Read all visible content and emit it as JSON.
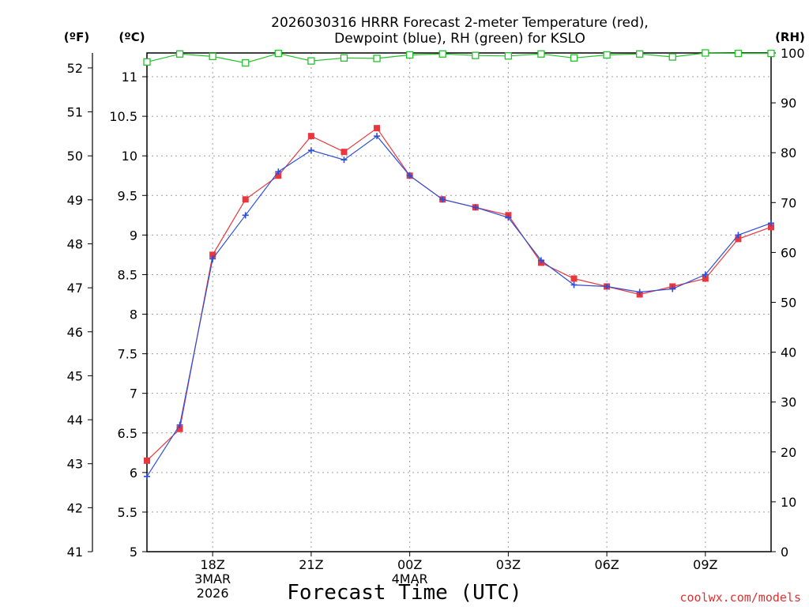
{
  "chart_data": {
    "type": "line",
    "title_line1": "2026030316 HRRR Forecast 2-meter Temperature (red),",
    "title_line2": "Dewpoint (blue), RH (green) for KSLO",
    "xlabel": "Forecast Time (UTC)",
    "units": {
      "left_outer": "(ºF)",
      "left_inner": "(ºC)",
      "right": "(RH)"
    },
    "credit": "coolwx.com/models",
    "x_hours": [
      16,
      17,
      18,
      19,
      20,
      21,
      22,
      23,
      24,
      25,
      26,
      27,
      28,
      29,
      30,
      31,
      32,
      33,
      34,
      35
    ],
    "x_ticks": [
      {
        "hour": 18,
        "lines": [
          "18Z",
          "3MAR",
          "2026"
        ]
      },
      {
        "hour": 21,
        "lines": [
          "21Z"
        ]
      },
      {
        "hour": 24,
        "lines": [
          "00Z",
          "4MAR"
        ]
      },
      {
        "hour": 27,
        "lines": [
          "03Z"
        ]
      },
      {
        "hour": 30,
        "lines": [
          "06Z"
        ]
      },
      {
        "hour": 33,
        "lines": [
          "09Z"
        ]
      }
    ],
    "xlim": [
      16,
      35
    ],
    "ylim_c": [
      5,
      11.3
    ],
    "ylim_rh": [
      0,
      100
    ],
    "yticks_c": [
      "5",
      "5.5",
      "6",
      "6.5",
      "7",
      "7.5",
      "8",
      "8.5",
      "9",
      "9.5",
      "10",
      "10.5",
      "11"
    ],
    "yticks_f": [
      "41",
      "42",
      "43",
      "44",
      "45",
      "46",
      "47",
      "48",
      "49",
      "50",
      "51",
      "52"
    ],
    "yticks_rh": [
      "0",
      "10",
      "20",
      "30",
      "40",
      "50",
      "60",
      "70",
      "80",
      "90",
      "100"
    ],
    "series": [
      {
        "name": "Temperature",
        "unit": "C",
        "color": "#e8383d",
        "marker": "square",
        "values": [
          6.15,
          6.55,
          8.75,
          9.45,
          9.75,
          10.25,
          10.05,
          10.35,
          9.75,
          9.45,
          9.35,
          9.25,
          8.65,
          8.45,
          8.35,
          8.25,
          8.35,
          8.45,
          8.95,
          9.1
        ]
      },
      {
        "name": "Dewpoint",
        "unit": "C",
        "color": "#2d4ed8",
        "marker": "plus",
        "values": [
          5.95,
          6.6,
          8.7,
          9.25,
          9.8,
          10.07,
          9.95,
          10.25,
          9.75,
          9.45,
          9.35,
          9.22,
          8.68,
          8.37,
          8.35,
          8.28,
          8.32,
          8.5,
          9.0,
          9.15
        ]
      },
      {
        "name": "RH",
        "unit": "%",
        "color": "#22c22a",
        "marker": "open-square",
        "values": [
          98.2,
          99.8,
          99.3,
          98.0,
          99.9,
          98.4,
          99.0,
          98.9,
          99.6,
          99.8,
          99.5,
          99.4,
          99.8,
          99.0,
          99.6,
          99.8,
          99.2,
          100,
          99.9,
          99.9
        ]
      }
    ]
  }
}
